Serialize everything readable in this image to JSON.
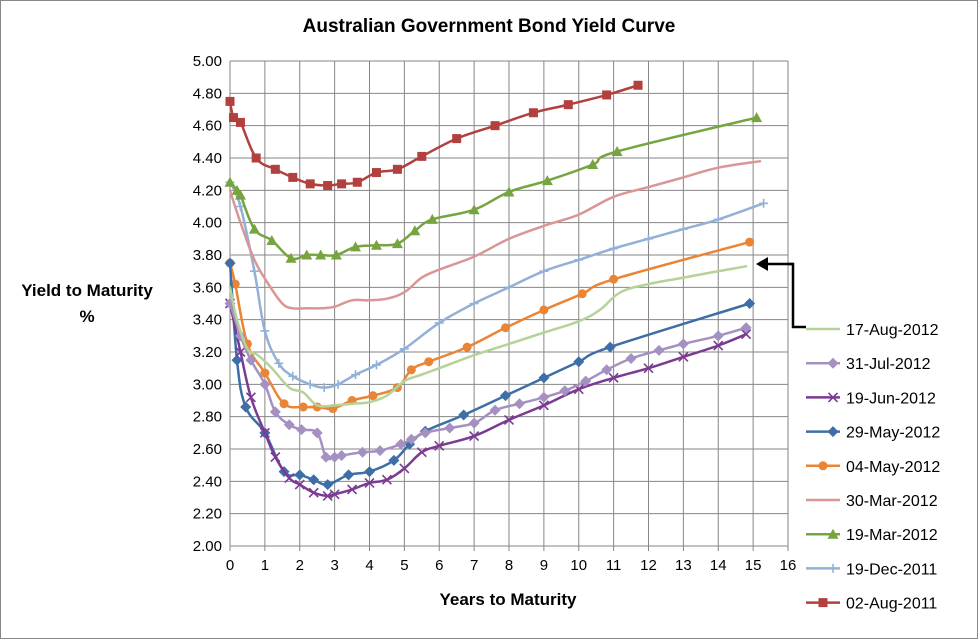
{
  "chart_data": {
    "type": "line",
    "title": "Australian Government Bond Yield Curve",
    "xlabel": "Years to Maturity",
    "ylabel_line1": "Yield to Maturity",
    "ylabel_line2": "%",
    "xlim": [
      0,
      16
    ],
    "ylim": [
      2.0,
      5.0
    ],
    "xticks": [
      "0",
      "1",
      "2",
      "3",
      "4",
      "5",
      "6",
      "7",
      "8",
      "9",
      "10",
      "11",
      "12",
      "13",
      "14",
      "15",
      "16"
    ],
    "yticks": [
      "2.00",
      "2.20",
      "2.40",
      "2.60",
      "2.80",
      "3.00",
      "3.20",
      "3.40",
      "3.60",
      "3.80",
      "4.00",
      "4.20",
      "4.40",
      "4.60",
      "4.80",
      "5.00"
    ],
    "grid": true,
    "legend_position": "right",
    "annotation": "arrow pointing to the 17-Aug-2012 curve",
    "series": [
      {
        "name": "17-Aug-2012",
        "color": "#b5d397",
        "marker": "none",
        "x": [
          0,
          0.2,
          0.5,
          0.8,
          1.2,
          1.7,
          2.1,
          2.5,
          3.0,
          3.5,
          4.0,
          4.5,
          5.0,
          5.5,
          6.0,
          7.0,
          8.0,
          9.0,
          10.0,
          10.6,
          11.2,
          12.0,
          13.0,
          14.0,
          14.8
        ],
        "y": [
          3.6,
          3.4,
          3.22,
          3.18,
          3.1,
          2.98,
          2.95,
          2.87,
          2.87,
          2.88,
          2.89,
          2.93,
          3.02,
          3.06,
          3.1,
          3.18,
          3.25,
          3.32,
          3.39,
          3.46,
          3.57,
          3.62,
          3.66,
          3.7,
          3.73
        ]
      },
      {
        "name": "31-Jul-2012",
        "color": "#a491c2",
        "marker": "diamond",
        "x": [
          0,
          0.3,
          0.6,
          1.0,
          1.3,
          1.7,
          2.05,
          2.5,
          2.75,
          3.0,
          3.2,
          3.8,
          4.3,
          4.9,
          5.2,
          5.6,
          6.3,
          7.0,
          7.6,
          8.3,
          9.0,
          9.6,
          10.2,
          10.8,
          11.5,
          12.3,
          13.0,
          14.0,
          14.8
        ],
        "y": [
          3.5,
          3.3,
          3.15,
          3.0,
          2.83,
          2.75,
          2.72,
          2.7,
          2.55,
          2.55,
          2.56,
          2.58,
          2.59,
          2.63,
          2.66,
          2.7,
          2.73,
          2.76,
          2.84,
          2.88,
          2.92,
          2.96,
          3.02,
          3.09,
          3.16,
          3.21,
          3.25,
          3.3,
          3.35
        ]
      },
      {
        "name": "19-Jun-2012",
        "color": "#7b3b93",
        "marker": "x",
        "x": [
          0,
          0.3,
          0.6,
          1.0,
          1.3,
          1.7,
          2.0,
          2.4,
          2.8,
          3.0,
          3.5,
          4.0,
          4.5,
          5.0,
          5.5,
          6.0,
          7.0,
          8.0,
          9.0,
          10.0,
          11.0,
          12.0,
          13.0,
          14.0,
          14.8
        ],
        "y": [
          3.5,
          3.2,
          2.92,
          2.7,
          2.55,
          2.42,
          2.38,
          2.33,
          2.31,
          2.32,
          2.35,
          2.39,
          2.41,
          2.48,
          2.58,
          2.62,
          2.68,
          2.78,
          2.87,
          2.97,
          3.04,
          3.1,
          3.17,
          3.24,
          3.31
        ]
      },
      {
        "name": "29-May-2012",
        "color": "#3e6ea7",
        "marker": "diamond",
        "x": [
          0,
          0.2,
          0.45,
          1.0,
          1.55,
          2.0,
          2.4,
          2.8,
          3.4,
          4.0,
          4.7,
          5.15,
          5.6,
          6.7,
          7.9,
          9.0,
          10.0,
          10.9,
          14.9
        ],
        "y": [
          3.75,
          3.15,
          2.86,
          2.7,
          2.46,
          2.44,
          2.41,
          2.38,
          2.44,
          2.46,
          2.53,
          2.63,
          2.71,
          2.81,
          2.93,
          3.04,
          3.14,
          3.23,
          3.5
        ]
      },
      {
        "name": "04-May-2012",
        "color": "#ea8536",
        "marker": "circle",
        "x": [
          0,
          0.15,
          0.5,
          1.0,
          1.55,
          2.1,
          2.5,
          2.95,
          3.5,
          4.1,
          4.8,
          5.2,
          5.7,
          6.8,
          7.9,
          9.0,
          10.1,
          11.0,
          14.9
        ],
        "y": [
          3.75,
          3.62,
          3.25,
          3.07,
          2.88,
          2.86,
          2.86,
          2.85,
          2.9,
          2.93,
          2.98,
          3.09,
          3.14,
          3.23,
          3.35,
          3.46,
          3.56,
          3.65,
          3.88
        ]
      },
      {
        "name": "30-Mar-2012",
        "color": "#d99695",
        "marker": "none",
        "x": [
          0,
          0.3,
          0.7,
          1.1,
          1.5,
          1.8,
          2.2,
          2.6,
          3.0,
          3.5,
          4.0,
          4.5,
          5.0,
          5.5,
          6.0,
          7.0,
          8.0,
          9.0,
          10.0,
          11.0,
          12.0,
          13.0,
          14.0,
          15.2
        ],
        "y": [
          4.2,
          4.0,
          3.77,
          3.62,
          3.5,
          3.47,
          3.47,
          3.47,
          3.48,
          3.52,
          3.52,
          3.53,
          3.57,
          3.66,
          3.71,
          3.79,
          3.9,
          3.98,
          4.05,
          4.16,
          4.22,
          4.28,
          4.34,
          4.38
        ]
      },
      {
        "name": "19-Mar-2012",
        "color": "#76a43f",
        "marker": "triangle",
        "x": [
          0,
          0.2,
          0.3,
          0.7,
          1.2,
          1.75,
          2.2,
          2.6,
          3.05,
          3.6,
          4.2,
          4.8,
          5.3,
          5.8,
          7.0,
          8.0,
          9.1,
          10.4,
          11.1,
          15.1
        ],
        "y": [
          4.25,
          4.2,
          4.17,
          3.96,
          3.89,
          3.78,
          3.8,
          3.8,
          3.8,
          3.85,
          3.86,
          3.87,
          3.95,
          4.02,
          4.08,
          4.19,
          4.26,
          4.36,
          4.44,
          4.65
        ]
      },
      {
        "name": "19-Dec-2011",
        "color": "#93b0d6",
        "marker": "plus",
        "x": [
          0,
          0.3,
          0.7,
          1.0,
          1.4,
          1.8,
          2.3,
          2.7,
          3.1,
          3.6,
          4.2,
          5.0,
          6.0,
          7.0,
          8.0,
          9.0,
          10.0,
          11.0,
          12.0,
          13.0,
          14.0,
          15.3
        ],
        "y": [
          4.25,
          4.1,
          3.7,
          3.33,
          3.13,
          3.05,
          3.0,
          2.98,
          3.0,
          3.06,
          3.12,
          3.22,
          3.38,
          3.5,
          3.6,
          3.7,
          3.77,
          3.84,
          3.9,
          3.96,
          4.02,
          4.12
        ]
      },
      {
        "name": "02-Aug-2011",
        "color": "#b1403e",
        "marker": "square",
        "x": [
          0,
          0.1,
          0.3,
          0.75,
          1.3,
          1.8,
          2.3,
          2.8,
          3.2,
          3.65,
          4.2,
          4.8,
          5.5,
          6.5,
          7.6,
          8.7,
          9.7,
          10.8,
          11.7
        ],
        "y": [
          4.75,
          4.65,
          4.62,
          4.4,
          4.33,
          4.28,
          4.24,
          4.23,
          4.24,
          4.25,
          4.31,
          4.33,
          4.41,
          4.52,
          4.6,
          4.68,
          4.73,
          4.79,
          4.85
        ]
      }
    ]
  }
}
